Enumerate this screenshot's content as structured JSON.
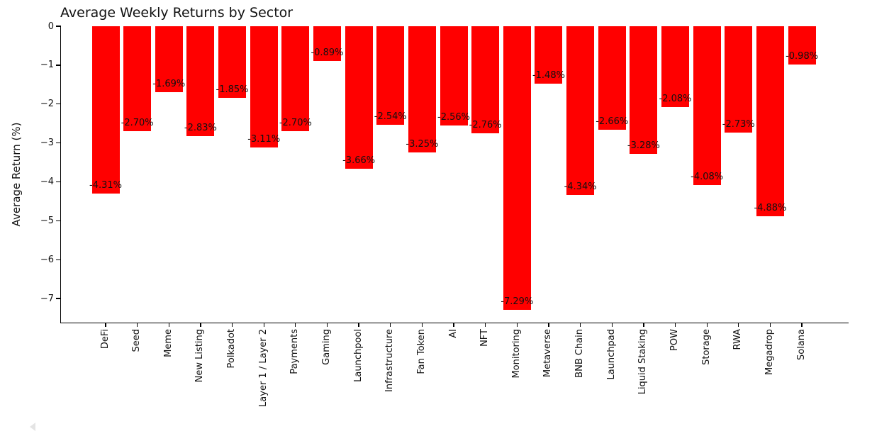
{
  "chart_data": {
    "type": "bar",
    "title": "Average Weekly Returns by Sector",
    "xlabel": "",
    "ylabel": "Average Return (%)",
    "bar_color": "#ff0000",
    "text_color": "#111111",
    "background_color": "#ffffff",
    "grid": false,
    "legend": null,
    "ylim": [
      -7.62,
      0
    ],
    "yticks": [
      0,
      -1,
      -2,
      -3,
      -4,
      -5,
      -6,
      -7
    ],
    "ytick_labels": [
      "0",
      "−1",
      "−2",
      "−3",
      "−4",
      "−5",
      "−6",
      "−7"
    ],
    "categories": [
      "DeFi",
      "Seed",
      "Meme",
      "New Listing",
      "Polkadot",
      "Layer 1 / Layer 2",
      "Payments",
      "Gaming",
      "Launchpool",
      "Infrastructure",
      "Fan Token",
      "AI",
      "NFT",
      "Monitoring",
      "Metaverse",
      "BNB Chain",
      "Launchpad",
      "Liquid Staking",
      "POW",
      "Storage",
      "RWA",
      "Megadrop",
      "Solana"
    ],
    "values": [
      -4.31,
      -2.7,
      -1.69,
      -2.83,
      -1.85,
      -3.11,
      -2.7,
      -0.89,
      -3.66,
      -2.54,
      -3.25,
      -2.56,
      -2.76,
      -7.29,
      -1.48,
      -4.34,
      -2.66,
      -3.28,
      -2.08,
      -4.08,
      -2.73,
      -4.88,
      -0.98
    ],
    "bar_labels": [
      "-4.31%",
      "-2.70%",
      "-1.69%",
      "-2.83%",
      "-1.85%",
      "-3.11%",
      "-2.70%",
      "-0.89%",
      "-3.66%",
      "-2.54%",
      "-3.25%",
      "-2.56%",
      "-2.76%",
      "-7.29%",
      "-1.48%",
      "-4.34%",
      "-2.66%",
      "-3.28%",
      "-2.08%",
      "-4.08%",
      "-2.73%",
      "-4.88%",
      "-0.98%"
    ]
  }
}
